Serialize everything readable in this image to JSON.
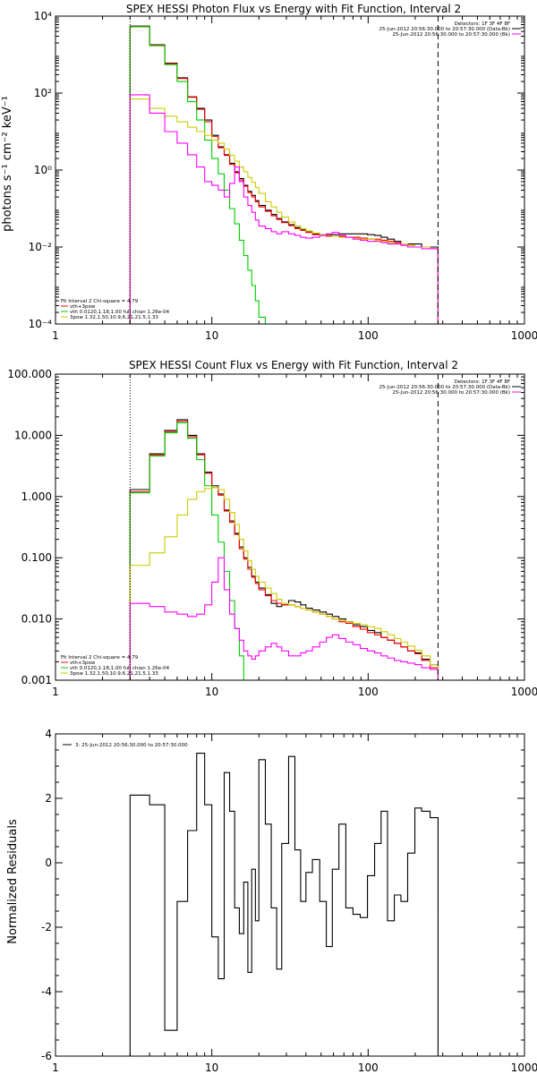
{
  "chart_data": [
    {
      "type": "line",
      "title": "SPEX HESSI Photon Flux vs Energy with Fit Function, Interval 2",
      "xlabel": "",
      "ylabel": "photons s⁻¹ cm⁻² keV⁻¹",
      "xscale": "log",
      "yscale": "log",
      "xlim": [
        1,
        1000
      ],
      "ylim": [
        0.0001,
        10000
      ],
      "x_ticks": [
        "1",
        "10",
        "100",
        "1000"
      ],
      "y_ticks": [
        "10⁻⁴",
        "10⁻²",
        "10⁰",
        "10²",
        "10⁴"
      ],
      "y_tick_values": [
        0.0001,
        0.01,
        1,
        100,
        10000
      ],
      "vlines": [
        {
          "x": 3,
          "style": "dotted",
          "color": "#000000"
        },
        {
          "x": 280,
          "style": "dashed",
          "color": "#000000"
        }
      ],
      "legend_top_right": [
        {
          "label": "Detectors: 1F 3F 4F 8F",
          "color": ""
        },
        {
          "label": "25-Jun-2012 20:56:30.000 to 20:57:30.000 (Data-Bk)",
          "color": "#000000"
        },
        {
          "label": "25-Jun-2012 20:56:30.000 to 20:57:30.000 (Bk)",
          "color": "#ff00ff"
        }
      ],
      "legend_bottom_left": [
        {
          "label": "Fit Interval 2   Chi-square = 4.79",
          "color": ""
        },
        {
          "label": "vth+3pow",
          "color": "#ff0000"
        },
        {
          "label": "vth 0.0120,1.18,1.00  full chian 1.26e-04",
          "color": "#00cc00"
        },
        {
          "label": "3pow 1.32,1.50,10.9,6.21,21.5,1.33",
          "color": "#cccc00"
        }
      ],
      "edges": [
        3,
        4,
        5,
        6,
        7,
        8,
        9,
        10,
        11,
        12,
        13,
        14,
        15,
        16,
        17,
        18,
        19,
        20,
        22,
        24,
        26,
        28,
        31,
        34,
        37,
        40,
        44,
        49,
        54,
        59,
        65,
        72,
        80,
        89,
        99,
        110,
        121,
        133,
        147,
        162,
        179,
        199,
        220,
        249,
        280
      ],
      "series": [
        {
          "name": "",
          "color": "#000000",
          "values": [
            5500,
            1800,
            600,
            250,
            80,
            40,
            20,
            8,
            4,
            2.5,
            1.5,
            0.9,
            0.6,
            0.4,
            0.28,
            0.22,
            0.16,
            0.12,
            0.09,
            0.07,
            0.055,
            0.045,
            0.038,
            0.032,
            0.028,
            0.025,
            0.022,
            0.021,
            0.021,
            0.021,
            0.022,
            0.022,
            0.022,
            0.022,
            0.021,
            0.02,
            0.018,
            0.016,
            0.014,
            0.012,
            0.012,
            0.012,
            0.01,
            0.01
          ]
        },
        {
          "name": "vth+3pow",
          "color": "#ff0000",
          "values": [
            5300,
            1750,
            580,
            240,
            78,
            38,
            18,
            7.5,
            3.8,
            2.4,
            1.4,
            0.85,
            0.55,
            0.38,
            0.26,
            0.2,
            0.15,
            0.11,
            0.085,
            0.065,
            0.052,
            0.043,
            0.036,
            0.03,
            0.027,
            0.024,
            0.021,
            0.02,
            0.019,
            0.019,
            0.019,
            0.018,
            0.018,
            0.017,
            0.016,
            0.016,
            0.015,
            0.014,
            0.013,
            0.012,
            0.011,
            0.01,
            0.01,
            0.009
          ]
        },
        {
          "name": "vth",
          "color": "#00cc00",
          "values": [
            5300,
            1700,
            550,
            200,
            60,
            20,
            6,
            2,
            0.8,
            0.3,
            0.1,
            0.04,
            0.015,
            0.006,
            0.0025,
            0.001,
            0.0004,
            0.00015,
            0.0001
          ]
        },
        {
          "name": "3pow",
          "color": "#cccc00",
          "values": [
            70,
            40,
            25,
            18,
            13,
            10,
            8,
            6,
            5,
            3.5,
            2.4,
            1.7,
            1.2,
            0.9,
            0.65,
            0.48,
            0.35,
            0.25,
            0.15,
            0.11,
            0.08,
            0.06,
            0.045,
            0.035,
            0.03,
            0.026,
            0.023,
            0.021,
            0.02,
            0.019,
            0.018,
            0.018,
            0.017,
            0.016,
            0.016,
            0.015,
            0.014,
            0.013,
            0.012,
            0.012,
            0.011,
            0.01,
            0.01,
            0.009
          ]
        },
        {
          "name": "",
          "color": "#ff00ff",
          "values": [
            90,
            30,
            10,
            5,
            2.5,
            1.2,
            0.5,
            0.4,
            0.3,
            0.2,
            0.45,
            1.2,
            0.5,
            0.2,
            0.12,
            0.08,
            0.05,
            0.035,
            0.03,
            0.025,
            0.022,
            0.025,
            0.022,
            0.02,
            0.018,
            0.017,
            0.018,
            0.02,
            0.022,
            0.024,
            0.02,
            0.018,
            0.016,
            0.015,
            0.014,
            0.014,
            0.013,
            0.012,
            0.012,
            0.011,
            0.01,
            0.01,
            0.009,
            0.009
          ]
        }
      ]
    },
    {
      "type": "line",
      "title": "SPEX HESSI Count Flux vs Energy with Fit Function, Interval 2",
      "xlabel": "",
      "ylabel": "",
      "xscale": "log",
      "yscale": "log",
      "xlim": [
        1,
        1000
      ],
      "ylim": [
        0.001,
        100
      ],
      "x_ticks": [
        "1",
        "10",
        "100",
        "1000"
      ],
      "y_ticks": [
        "0.001",
        "0.010",
        "0.100",
        "1.000",
        "10.000",
        "100.000"
      ],
      "y_tick_values": [
        0.001,
        0.01,
        0.1,
        1,
        10,
        100
      ],
      "vlines": [
        {
          "x": 3,
          "style": "dotted",
          "color": "#000000"
        },
        {
          "x": 280,
          "style": "dashed",
          "color": "#000000"
        }
      ],
      "legend_top_right": [
        {
          "label": "Detectors: 1F 3F 4F 8F",
          "color": ""
        },
        {
          "label": "25-Jun-2012 20:56:30.000 to 20:57:30.000 (Data-Bk)",
          "color": "#000000"
        },
        {
          "label": "25-Jun-2012 20:56:30.000 to 20:57:30.000 (Bk)",
          "color": "#ff00ff"
        }
      ],
      "legend_bottom_left": [
        {
          "label": "Fit Interval 2   Chi-square = 4.79",
          "color": ""
        },
        {
          "label": "vth+3pow",
          "color": "#ff0000"
        },
        {
          "label": "vth 0.0120,1.18,1.00  full chian 1.26e-04",
          "color": "#00cc00"
        },
        {
          "label": "3pow 1.32,1.50,10.9,6.21,21.5,1.33",
          "color": "#cccc00"
        }
      ],
      "edges": [
        3,
        4,
        5,
        6,
        7,
        8,
        9,
        10,
        11,
        12,
        13,
        14,
        15,
        16,
        17,
        18,
        19,
        20,
        22,
        24,
        26,
        28,
        31,
        34,
        37,
        40,
        44,
        49,
        54,
        59,
        65,
        72,
        80,
        89,
        99,
        110,
        121,
        133,
        147,
        162,
        179,
        199,
        220,
        249,
        280
      ],
      "series": [
        {
          "name": "",
          "color": "#000000",
          "values": [
            1.3,
            5,
            12,
            18,
            10,
            5,
            2.5,
            1.5,
            1.1,
            0.6,
            0.4,
            0.25,
            0.15,
            0.1,
            0.07,
            0.05,
            0.04,
            0.032,
            0.025,
            0.018,
            0.016,
            0.017,
            0.02,
            0.019,
            0.017,
            0.015,
            0.014,
            0.013,
            0.012,
            0.011,
            0.01,
            0.009,
            0.008,
            0.0075,
            0.0065,
            0.006,
            0.005,
            0.0045,
            0.004,
            0.0035,
            0.003,
            0.0028,
            0.0022,
            0.0018
          ]
        },
        {
          "name": "vth+3pow",
          "color": "#ff0000",
          "values": [
            1.2,
            4.8,
            11.5,
            17,
            9.5,
            4.8,
            2.4,
            1.4,
            1.05,
            0.58,
            0.38,
            0.24,
            0.14,
            0.095,
            0.065,
            0.048,
            0.038,
            0.03,
            0.024,
            0.02,
            0.018,
            0.017,
            0.017,
            0.016,
            0.015,
            0.014,
            0.013,
            0.012,
            0.011,
            0.01,
            0.009,
            0.0085,
            0.0075,
            0.0068,
            0.006,
            0.0055,
            0.005,
            0.0045,
            0.004,
            0.0035,
            0.003,
            0.0027,
            0.0021,
            0.0016
          ]
        },
        {
          "name": "vth",
          "color": "#00cc00",
          "values": [
            1.15,
            4.6,
            11,
            16,
            9,
            4,
            1.5,
            0.5,
            0.18,
            0.06,
            0.02,
            0.007,
            0.0025,
            0.001
          ]
        },
        {
          "name": "3pow",
          "color": "#cccc00",
          "values": [
            0.075,
            0.12,
            0.22,
            0.5,
            0.9,
            1.2,
            1.35,
            1.4,
            1.3,
            0.9,
            0.55,
            0.35,
            0.2,
            0.13,
            0.09,
            0.065,
            0.05,
            0.04,
            0.032,
            0.026,
            0.021,
            0.018,
            0.017,
            0.016,
            0.015,
            0.014,
            0.013,
            0.012,
            0.011,
            0.01,
            0.0095,
            0.009,
            0.0085,
            0.008,
            0.0075,
            0.007,
            0.0062,
            0.0055,
            0.0048,
            0.0042,
            0.0036,
            0.0031,
            0.0025,
            0.0018
          ]
        },
        {
          "name": "",
          "color": "#ff00ff",
          "values": [
            0.018,
            0.016,
            0.013,
            0.012,
            0.011,
            0.012,
            0.017,
            0.04,
            0.1,
            0.03,
            0.012,
            0.007,
            0.0045,
            0.003,
            0.0025,
            0.0022,
            0.0025,
            0.003,
            0.0035,
            0.004,
            0.0035,
            0.003,
            0.0025,
            0.0025,
            0.0028,
            0.003,
            0.0035,
            0.0042,
            0.005,
            0.0055,
            0.0048,
            0.0042,
            0.0038,
            0.0033,
            0.003,
            0.0028,
            0.0025,
            0.0023,
            0.0021,
            0.002,
            0.0019,
            0.0018,
            0.0016,
            0.0015
          ]
        }
      ]
    },
    {
      "type": "line",
      "title": "",
      "xlabel": "",
      "ylabel": "Normalized Residuals",
      "xscale": "log",
      "yscale": "linear",
      "xlim": [
        1,
        1000
      ],
      "ylim": [
        -6,
        4
      ],
      "x_ticks": [
        "1",
        "10",
        "100",
        "1000"
      ],
      "y_ticks": [
        "-6",
        "-4",
        "-2",
        "0",
        "2",
        "4"
      ],
      "y_tick_values": [
        -6,
        -4,
        -2,
        0,
        2,
        4
      ],
      "legend_top_left": [
        {
          "label": "3: 25-Jun-2012 20:56:30.000 to 20:57:30.000",
          "color": "#000000"
        }
      ],
      "edges": [
        3,
        4,
        5,
        6,
        7,
        8,
        9,
        10,
        11,
        12,
        13,
        14,
        15,
        16,
        17,
        18,
        19,
        20,
        22,
        24,
        26,
        28,
        31,
        34,
        37,
        40,
        44,
        49,
        54,
        59,
        65,
        72,
        80,
        89,
        99,
        110,
        121,
        133,
        147,
        162,
        179,
        199,
        220,
        249,
        280
      ],
      "series": [
        {
          "name": "",
          "color": "#000000",
          "values": [
            2.1,
            1.8,
            -5.2,
            -1.2,
            1.0,
            3.4,
            1.8,
            -2.3,
            -3.6,
            2.8,
            1.6,
            -1.4,
            -2.2,
            -0.6,
            -3.4,
            -0.2,
            -1.8,
            3.2,
            1.2,
            -1.4,
            -3.3,
            0.6,
            3.3,
            0.4,
            -1.2,
            -0.3,
            0.1,
            -1.2,
            -2.6,
            -0.2,
            1.2,
            -1.4,
            -1.6,
            -1.7,
            -0.4,
            0.6,
            1.6,
            -1.8,
            -1.0,
            -1.2,
            0.3,
            1.7,
            1.6,
            1.4
          ]
        }
      ]
    }
  ]
}
